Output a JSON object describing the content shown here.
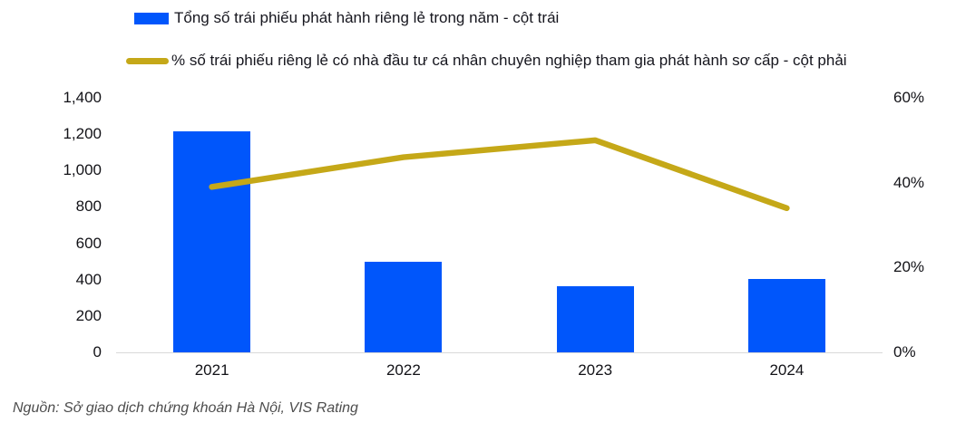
{
  "colors": {
    "bar": "#0056FB",
    "line": "#C5A818",
    "axis_line": "#D9D9D9",
    "text": "#16161E",
    "source_text": "#4D4D4D"
  },
  "legend": {
    "items": [
      {
        "label": "Tổng số trái phiếu phát hành riêng lẻ trong năm - cột trái",
        "swatch": "bar"
      },
      {
        "label": "% số trái phiếu riêng lẻ có nhà đầu tư cá nhân chuyên nghiệp tham gia phát hành sơ cấp - cột phải",
        "swatch": "line"
      }
    ]
  },
  "chart_data": {
    "type": "bar",
    "subtype": "combo-bar-line-dual-axis",
    "categories": [
      "2021",
      "2022",
      "2023",
      "2024"
    ],
    "series": [
      {
        "name": "Tổng số trái phiếu phát hành riêng lẻ trong năm - cột trái",
        "type": "bar",
        "axis": "left",
        "values": [
          1215,
          500,
          365,
          405
        ]
      },
      {
        "name": "% số trái phiếu riêng lẻ có nhà đầu tư cá nhân chuyên nghiệp tham gia phát hành sơ cấp - cột phải",
        "type": "line",
        "axis": "right",
        "values": [
          39,
          46,
          50,
          34
        ]
      }
    ],
    "left_axis": {
      "min": 0,
      "max": 1400,
      "tick_step": 200,
      "tick_labels": [
        "0",
        "200",
        "400",
        "600",
        "800",
        "1,000",
        "1,200",
        "1,400"
      ]
    },
    "right_axis": {
      "min": 0,
      "max": 60,
      "tick_step": 20,
      "tick_labels": [
        "0%",
        "20%",
        "40%",
        "60%"
      ]
    },
    "grid": false,
    "legend_position": "top-left",
    "title": "",
    "xlabel": "",
    "ylabel": ""
  },
  "source": "Nguồn: Sở giao dịch chứng khoán Hà Nội, VIS Rating"
}
